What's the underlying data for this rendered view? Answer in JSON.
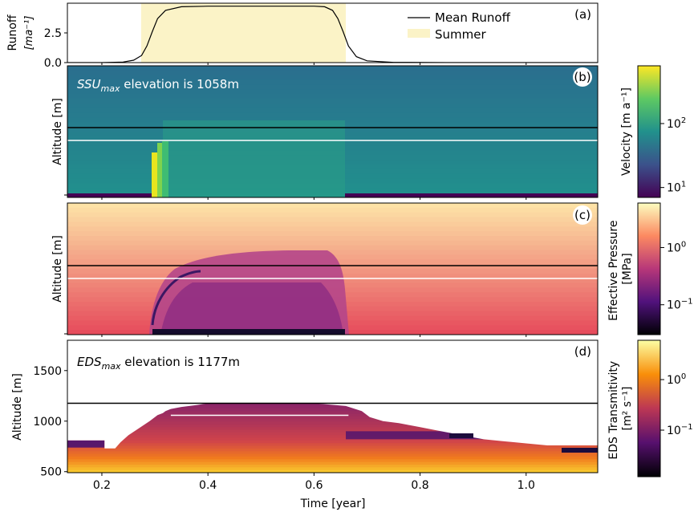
{
  "chart_data": [
    {
      "panel_label": "(a)",
      "type": "area",
      "ylabel_line1": "Runoff",
      "ylabel_line2": "[ma⁻¹]",
      "ylim": [
        0,
        5
      ],
      "yticks": [
        0.0,
        2.5
      ],
      "ytick_labels": [
        "0.0",
        "2.5"
      ],
      "xlim": [
        0.135,
        1.135
      ],
      "series": [
        {
          "name": "Mean Runoff",
          "color": "#000000",
          "x": [
            0.135,
            0.2,
            0.24,
            0.26,
            0.275,
            0.285,
            0.295,
            0.305,
            0.32,
            0.35,
            0.4,
            0.5,
            0.6,
            0.62,
            0.635,
            0.645,
            0.655,
            0.665,
            0.68,
            0.7,
            0.75,
            0.85,
            1.135
          ],
          "y": [
            0.0,
            0.0,
            0.05,
            0.2,
            0.6,
            1.4,
            2.6,
            3.7,
            4.4,
            4.7,
            4.75,
            4.75,
            4.75,
            4.7,
            4.4,
            3.7,
            2.6,
            1.4,
            0.5,
            0.15,
            0.02,
            0.0,
            0.0
          ]
        }
      ],
      "shaded_region": {
        "name": "Summer",
        "x_start": 0.274,
        "x_end": 0.66,
        "color": "#fbf3c7"
      },
      "legend_placement": "top-right"
    },
    {
      "panel_label": "(b)",
      "type": "heatmap",
      "annotation_sym": "SSU",
      "annotation_sub": "max",
      "annotation_rest": " elevation is 1058m",
      "ylabel": "Altitude [m]",
      "colorbar": {
        "label": "Velocity [m a⁻¹]",
        "colormap": "viridis",
        "scale": "log",
        "tick_labels": [
          {
            "base": "10",
            "exp": "2",
            "value": 100
          },
          {
            "base": "10",
            "exp": "1",
            "value": 10
          }
        ],
        "range": [
          7,
          800
        ]
      },
      "black_line_altitude": 1177,
      "white_line_altitude": 1058
    },
    {
      "panel_label": "(c)",
      "type": "heatmap",
      "ylabel": "Altitude [m]",
      "colorbar": {
        "label_line1": "Effective Pressure",
        "label_line2": "[MPa]",
        "colormap": "magma",
        "scale": "log",
        "tick_labels": [
          {
            "base": "10",
            "exp": "0",
            "value": 1
          },
          {
            "base": "10",
            "exp": "−1",
            "value": 0.1
          }
        ],
        "range": [
          0.03,
          6
        ]
      },
      "black_line_altitude": 1177,
      "white_line_altitude": 1058
    },
    {
      "panel_label": "(d)",
      "type": "heatmap",
      "annotation_sym": "EDS",
      "annotation_sub": "max",
      "annotation_rest": " elevation is 1177m",
      "ylabel": "Altitude [m]",
      "ylim": [
        490,
        1800
      ],
      "yticks": [
        500,
        1000,
        1500
      ],
      "xlabel": "Time [year]",
      "xlim": [
        0.135,
        1.135
      ],
      "xticks": [
        0.2,
        0.4,
        0.6,
        0.8,
        1.0
      ],
      "xtick_labels": [
        "0.2",
        "0.4",
        "0.6",
        "0.8",
        "1.0"
      ],
      "colorbar": {
        "label_line1": "EDS Transmitivity",
        "label_line2": "[m² s⁻¹]",
        "colormap": "inferno",
        "scale": "log",
        "tick_labels": [
          {
            "base": "10",
            "exp": "0",
            "value": 1
          },
          {
            "base": "10",
            "exp": "−1",
            "value": 0.1
          }
        ],
        "range": [
          0.012,
          6
        ]
      },
      "black_line_altitude": 1177,
      "white_line_altitude": 1058,
      "top_boundary": {
        "x": [
          0.135,
          0.205,
          0.205,
          0.225,
          0.235,
          0.25,
          0.27,
          0.29,
          0.305,
          0.315,
          0.32,
          0.33,
          0.35,
          0.365,
          0.38,
          0.4,
          0.6,
          0.66,
          0.69,
          0.705,
          0.73,
          0.76,
          0.78,
          0.8,
          0.83,
          0.86,
          0.89,
          0.92,
          0.96,
          1.0,
          1.04,
          1.135
        ],
        "y": [
          810,
          810,
          730,
          730,
          790,
          860,
          930,
          1000,
          1060,
          1080,
          1100,
          1120,
          1140,
          1150,
          1160,
          1177,
          1177,
          1150,
          1100,
          1040,
          1000,
          980,
          960,
          940,
          910,
          880,
          850,
          820,
          800,
          780,
          760,
          760
        ]
      }
    }
  ]
}
